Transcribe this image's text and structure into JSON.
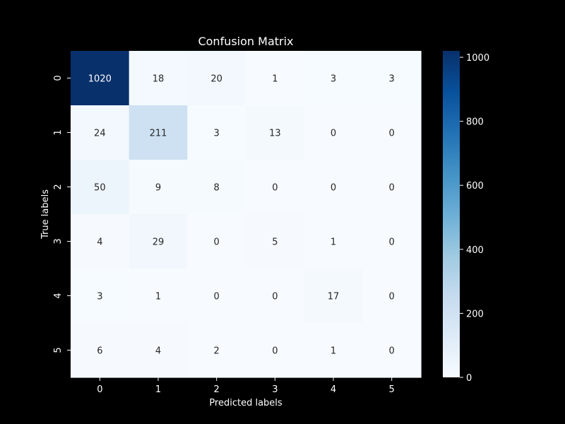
{
  "chart_data": {
    "type": "heatmap",
    "title": "Confusion Matrix",
    "xlabel": "Predicted labels",
    "ylabel": "True labels",
    "x_categories": [
      "0",
      "1",
      "2",
      "3",
      "4",
      "5"
    ],
    "y_categories": [
      "0",
      "1",
      "2",
      "3",
      "4",
      "5"
    ],
    "values": [
      [
        1020,
        18,
        20,
        1,
        3,
        3
      ],
      [
        24,
        211,
        3,
        13,
        0,
        0
      ],
      [
        50,
        9,
        8,
        0,
        0,
        0
      ],
      [
        4,
        29,
        0,
        5,
        1,
        0
      ],
      [
        3,
        1,
        0,
        0,
        17,
        0
      ],
      [
        6,
        4,
        2,
        0,
        1,
        0
      ]
    ],
    "colormap": "Blues",
    "colorbar": {
      "range": [
        0,
        1020
      ],
      "ticks": [
        "0",
        "200",
        "400",
        "600",
        "800",
        "1000"
      ]
    },
    "background_color": "#000000",
    "text_color": "#ffffff"
  }
}
